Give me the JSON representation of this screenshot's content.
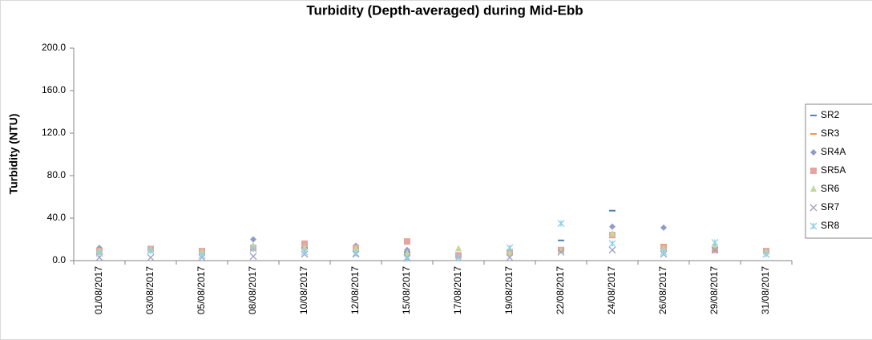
{
  "chart_data": {
    "type": "scatter",
    "title": "Turbidity (Depth-averaged) during Mid-Ebb",
    "y_label": "Turbidity (NTU)",
    "categories": [
      "01/08/2017",
      "03/08/2017",
      "05/08/2017",
      "08/08/2017",
      "10/08/2017",
      "12/08/2017",
      "15/08/2017",
      "17/08/2017",
      "19/08/2017",
      "22/08/2017",
      "24/08/2017",
      "26/08/2017",
      "29/08/2017",
      "31/08/2017"
    ],
    "series": [
      {
        "name": "SR2",
        "color": "#4f81bd",
        "marker": "dash",
        "values": [
          10,
          10,
          8,
          12,
          12,
          12,
          8,
          5,
          6,
          19,
          47,
          12,
          12,
          8
        ]
      },
      {
        "name": "SR3",
        "color": "#f79646",
        "marker": "dash",
        "values": [
          8,
          10,
          8,
          12,
          14,
          10,
          6,
          4,
          6,
          10,
          24,
          15,
          10,
          8
        ]
      },
      {
        "name": "SR4A",
        "color": "#8e9cc7",
        "marker": "diamond",
        "values": [
          12,
          10,
          8,
          20,
          12,
          14,
          10,
          5,
          7,
          10,
          32,
          31,
          12,
          8
        ]
      },
      {
        "name": "SR5A",
        "color": "#e6a4a0",
        "marker": "square",
        "values": [
          9,
          11,
          9,
          12,
          16,
          12,
          18,
          5,
          8,
          10,
          24,
          12,
          10,
          9
        ]
      },
      {
        "name": "SR6",
        "color": "#c3d69b",
        "marker": "triangle",
        "values": [
          9,
          10,
          8,
          14,
          12,
          11,
          7,
          11,
          7,
          9,
          25,
          11,
          14,
          8
        ]
      },
      {
        "name": "SR7",
        "color": "#9e9ebd",
        "marker": "x",
        "values": [
          3,
          3,
          3,
          4,
          6,
          6,
          3,
          3,
          3,
          8,
          10,
          6,
          10,
          6
        ]
      },
      {
        "name": "SR8",
        "color": "#8ecfe8",
        "marker": "star",
        "values": [
          7,
          9,
          5,
          11,
          8,
          7,
          2,
          3,
          12,
          35,
          16,
          8,
          17,
          6
        ]
      }
    ],
    "ylim": [
      0,
      200
    ],
    "yticks": [
      {
        "value": 0,
        "label": "0.0"
      },
      {
        "value": 40,
        "label": "40.0"
      },
      {
        "value": 80,
        "label": "80.0"
      },
      {
        "value": 120,
        "label": "120.0"
      },
      {
        "value": 160,
        "label": "160.0"
      },
      {
        "value": 200,
        "label": "200.0"
      }
    ],
    "grid": false,
    "legend": "right"
  }
}
